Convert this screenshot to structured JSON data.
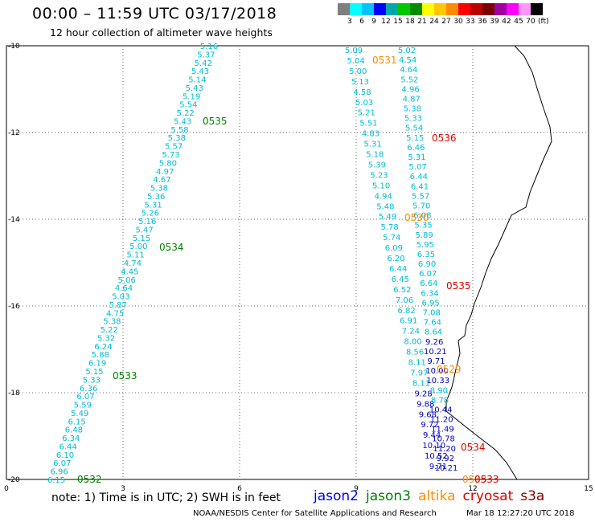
{
  "title": "00:00 – 11:59 UTC 03/17/2018",
  "subtitle": "12 hour collection of altimeter wave heights",
  "legend": {
    "colors": [
      "#7f7f7f",
      "#00ffff",
      "#00c3ff",
      "#0000ff",
      "#00a8a8",
      "#00c800",
      "#008c00",
      "#ffff00",
      "#ffc800",
      "#ff8c00",
      "#ff0000",
      "#bb0000",
      "#7a0000",
      "#a000a0",
      "#ff00ff",
      "#ff96ff",
      "#000000"
    ],
    "ticks": [
      "3",
      "6",
      "9",
      "12",
      "15",
      "18",
      "21",
      "24",
      "27",
      "30",
      "33",
      "36",
      "39",
      "42",
      "45",
      "70"
    ],
    "unit": "(ft)"
  },
  "axes": {
    "x_ticks": [
      "0",
      "3",
      "6",
      "9",
      "12",
      "15"
    ],
    "y_ticks": [
      "-10",
      "-12",
      "-14",
      "-16",
      "-18",
      "-20"
    ]
  },
  "tracks": [
    {
      "id": "t1",
      "satellite": "jason3",
      "color": "#00bcd4",
      "values": [
        "5.16",
        "5.37",
        "5.42",
        "5.43",
        "5.14",
        "5.43",
        "5.19",
        "5.54",
        "5.22",
        "5.43",
        "5.58",
        "5.38",
        "5.57",
        "5.73",
        "5.80",
        "4.97",
        "4.67",
        "5.38",
        "5.36",
        "5.31",
        "5.26",
        "5.16",
        "5.47",
        "5.15",
        "5.00",
        "5.11",
        "4.74",
        "4.45",
        "5.06",
        "4.64",
        "5.03",
        "5.87",
        "4.75",
        "5.38",
        "5.22",
        "5.32",
        "6.24",
        "5.88",
        "6.19",
        "5.15",
        "5.33",
        "6.36",
        "6.07",
        "5.59",
        "5.49",
        "6.15",
        "6.48",
        "6.34",
        "6.44",
        "6.10",
        "6.07",
        "6.96",
        "6.15"
      ]
    },
    {
      "id": "t2",
      "satellite": "altika",
      "color": "#00bcd4",
      "values": [
        "5.09",
        "5.04",
        "5.00",
        "5.13",
        "4.58",
        "5.03",
        "5.21",
        "5.51",
        "4.83",
        "5.31",
        "5.18",
        "5.39",
        "5.23",
        "5.10",
        "4.94",
        "5.48",
        "5.49",
        "5.78",
        "5.74",
        "6.09",
        "6.20",
        "6.44",
        "6.45",
        "6.52",
        "7.06",
        "6.82",
        "6.91",
        "7.24",
        "8.00",
        "8.56",
        "8.11",
        "7.97",
        "8.11",
        "9.28",
        "9.88",
        "9.68",
        "9.72",
        "9.44",
        "10.10",
        "10.52",
        "9.71"
      ]
    },
    {
      "id": "t3",
      "satellite": "cryosat",
      "color": "#00bcd4",
      "values": [
        "5.02",
        "4.54",
        "4.64",
        "5.52",
        "4.96",
        "4.87",
        "5.38",
        "5.33",
        "5.54",
        "5.15",
        "6.46",
        "5.31",
        "5.07",
        "6.44",
        "6.41",
        "5.57",
        "5.70",
        "6.08",
        "5.35",
        "5.89",
        "5.95",
        "6.35",
        "6.90",
        "6.07",
        "6.64",
        "6.34",
        "6.95",
        "7.08",
        "7.64",
        "8.64",
        "9.26",
        "10.21",
        "9.71",
        "10.00",
        "10.33",
        "8.90",
        "8.78",
        "10.44",
        "11.20",
        "11.49",
        "10.78",
        "11.20",
        "9.92",
        "10.21"
      ]
    }
  ],
  "time_labels": [
    {
      "text": "0535",
      "color": "#008000"
    },
    {
      "text": "0534",
      "color": "#008000"
    },
    {
      "text": "0533",
      "color": "#008000"
    },
    {
      "text": "0532",
      "color": "#008000"
    },
    {
      "text": "0531",
      "color": "#ff8c00"
    },
    {
      "text": "0530",
      "color": "#ff8c00"
    },
    {
      "text": "0529",
      "color": "#ff8c00"
    },
    {
      "text": "0533",
      "color": "#ff8c00"
    },
    {
      "text": "0536",
      "color": "#e00000"
    },
    {
      "text": "0535",
      "color": "#e00000"
    },
    {
      "text": "0534",
      "color": "#e00000"
    },
    {
      "text": "0533",
      "color": "#e00000"
    }
  ],
  "note": "note: 1) Time is in UTC; 2) SWH is in feet",
  "satellites": [
    {
      "name": "jason2",
      "color": "#0000ff"
    },
    {
      "name": "jason3",
      "color": "#008000"
    },
    {
      "name": "altika",
      "color": "#ff8c00"
    },
    {
      "name": "cryosat",
      "color": "#e00000"
    },
    {
      "name": "s3a",
      "color": "#8b0000"
    }
  ],
  "credit": "NOAA/NESDIS Center for Satellite Applications and Research",
  "timestamp": "Mar 18 12:27:20 UTC 2018"
}
